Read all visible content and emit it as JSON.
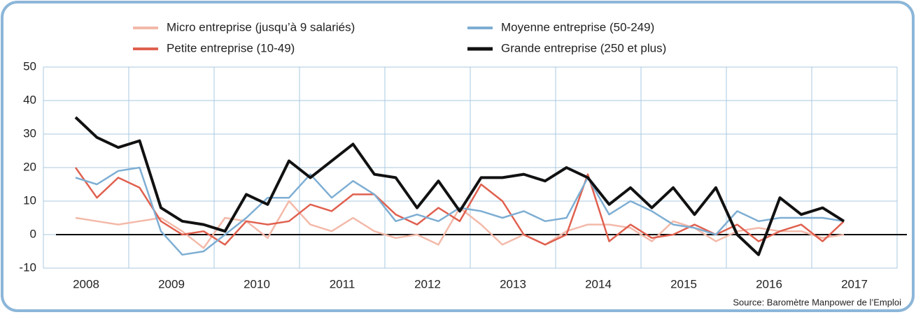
{
  "chart_data": {
    "type": "line",
    "x": [
      2008,
      2008.25,
      2008.5,
      2008.75,
      2009,
      2009.25,
      2009.5,
      2009.75,
      2010,
      2010.25,
      2010.5,
      2010.75,
      2011,
      2011.25,
      2011.5,
      2011.75,
      2012,
      2012.25,
      2012.5,
      2012.75,
      2013,
      2013.25,
      2013.5,
      2013.75,
      2014,
      2014.25,
      2014.5,
      2014.75,
      2015,
      2015.25,
      2015.5,
      2015.75,
      2016,
      2016.25,
      2016.5,
      2016.75,
      2017
    ],
    "series": [
      {
        "name": "Micro entreprise (jusqu’à 9 salariés)",
        "color": "#f3b9a9",
        "values": [
          5,
          4,
          3,
          4,
          5,
          1,
          -4,
          5,
          4,
          -1,
          10,
          3,
          1,
          5,
          1,
          -1,
          0,
          -3,
          8,
          3,
          -3,
          0,
          -3,
          1,
          3,
          3,
          2,
          -2,
          4,
          2,
          -2,
          1,
          2,
          1,
          1,
          -1,
          0
        ]
      },
      {
        "name": "Petite entreprise (10-49)",
        "color": "#e0604f",
        "values": [
          20,
          11,
          17,
          14,
          4,
          0,
          1,
          -3,
          4,
          3,
          4,
          9,
          7,
          12,
          12,
          6,
          3,
          8,
          4,
          15,
          10,
          0,
          -3,
          0,
          18,
          -2,
          3,
          -1,
          0,
          3,
          0,
          3,
          -2,
          1,
          3,
          -2,
          4
        ]
      },
      {
        "name": "Moyenne entreprise (50-249)",
        "color": "#7eaed3",
        "values": [
          17,
          15,
          19,
          20,
          1,
          -6,
          -5,
          0,
          5,
          11,
          11,
          18,
          11,
          16,
          12,
          4,
          6,
          4,
          8,
          7,
          5,
          7,
          4,
          5,
          17,
          6,
          10,
          7,
          3,
          2,
          0,
          7,
          4,
          5,
          5,
          5,
          4
        ]
      },
      {
        "name": "Grande entreprise (250 et plus)",
        "color": "#111111",
        "values": [
          35,
          29,
          26,
          28,
          8,
          4,
          3,
          1,
          12,
          9,
          22,
          17,
          22,
          27,
          18,
          17,
          8,
          16,
          7,
          17,
          17,
          18,
          16,
          20,
          17,
          9,
          14,
          8,
          14,
          6,
          14,
          0,
          -6,
          11,
          6,
          8,
          4
        ]
      }
    ],
    "xlim": [
      2007.623,
      2017.623
    ],
    "xticks": [
      {
        "value": 2008.123,
        "label": "2008"
      },
      {
        "value": 2009.123,
        "label": "2009"
      },
      {
        "value": 2010.123,
        "label": "2010"
      },
      {
        "value": 2011.123,
        "label": "2011"
      },
      {
        "value": 2012.123,
        "label": "2012"
      },
      {
        "value": 2013.123,
        "label": "2013"
      },
      {
        "value": 2014.123,
        "label": "2014"
      },
      {
        "value": 2015.123,
        "label": "2015"
      },
      {
        "value": 2016.123,
        "label": "2016"
      },
      {
        "value": 2017.123,
        "label": "2017"
      }
    ],
    "ylim": [
      -10,
      50
    ],
    "yticks": [
      -10,
      0,
      10,
      20,
      30,
      40,
      50
    ],
    "grid": true,
    "source": "Source: Baromètre Manpower de l’Emploi"
  }
}
